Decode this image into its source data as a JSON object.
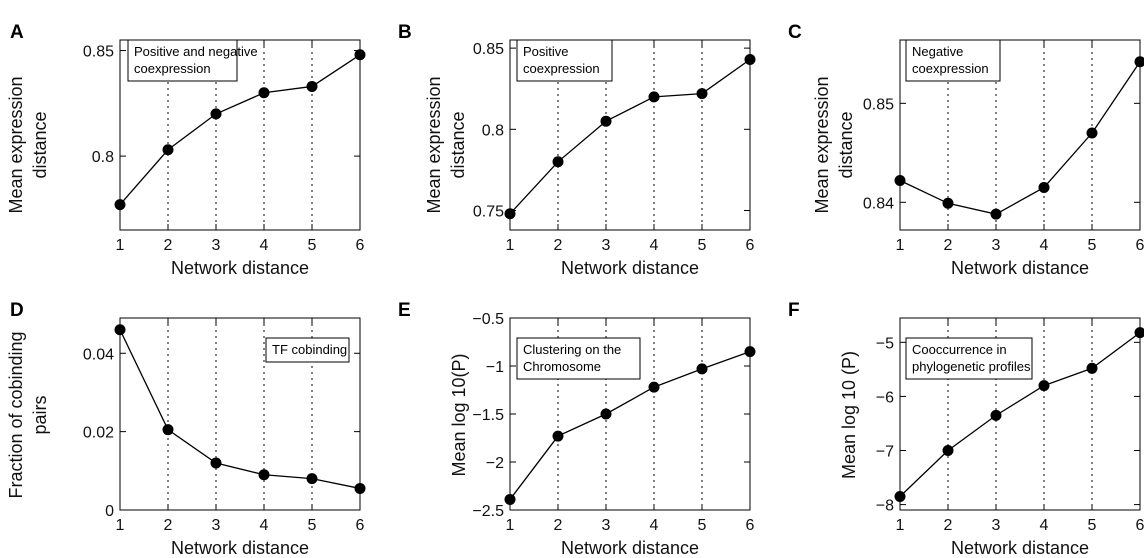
{
  "colors": {
    "ink": "#000000",
    "background": "#ffffff"
  },
  "chart_data": [
    {
      "id": "A",
      "type": "line",
      "panel_label": "A",
      "annotation": [
        "Positive and negative",
        "coexpression"
      ],
      "xlabel": "Network distance",
      "ylabel": [
        "Mean expression",
        "distance"
      ],
      "x": [
        1,
        2,
        3,
        4,
        5,
        6
      ],
      "y": [
        0.777,
        0.803,
        0.82,
        0.83,
        0.833,
        0.848
      ],
      "xlim": [
        1,
        6
      ],
      "ylim": [
        0.765,
        0.855
      ],
      "yticks": [
        0.8,
        0.85
      ],
      "ytick_labels": [
        "0.8",
        "0.85"
      ],
      "xticks": [
        1,
        2,
        3,
        4,
        5,
        6
      ],
      "xtick_labels": [
        "1",
        "2",
        "3",
        "4",
        "5",
        "6"
      ],
      "grid": "vertical dotted lines at x = 2..5"
    },
    {
      "id": "B",
      "type": "line",
      "panel_label": "B",
      "annotation": [
        "Positive",
        "coexpression"
      ],
      "xlabel": "Network distance",
      "ylabel": [
        "Mean expression",
        "distance"
      ],
      "x": [
        1,
        2,
        3,
        4,
        5,
        6
      ],
      "y": [
        0.748,
        0.78,
        0.805,
        0.82,
        0.822,
        0.843
      ],
      "xlim": [
        1,
        6
      ],
      "ylim": [
        0.738,
        0.855
      ],
      "yticks": [
        0.75,
        0.8,
        0.85
      ],
      "ytick_labels": [
        "0.75",
        "0.8",
        "0.85"
      ],
      "xticks": [
        1,
        2,
        3,
        4,
        5,
        6
      ],
      "xtick_labels": [
        "1",
        "2",
        "3",
        "4",
        "5",
        "6"
      ],
      "grid": "vertical dotted lines at x = 2..5"
    },
    {
      "id": "C",
      "type": "line",
      "panel_label": "C",
      "annotation": [
        "Negative",
        "coexpression"
      ],
      "xlabel": "Network distance",
      "ylabel": [
        "Mean expression",
        "distance"
      ],
      "x": [
        1,
        2,
        3,
        4,
        5,
        6
      ],
      "y": [
        0.8422,
        0.8399,
        0.8388,
        0.8415,
        0.847,
        0.8542
      ],
      "xlim": [
        1,
        6
      ],
      "ylim": [
        0.8372,
        0.8564
      ],
      "yticks": [
        0.84,
        0.85
      ],
      "ytick_labels": [
        "0.84",
        "0.85"
      ],
      "xticks": [
        1,
        2,
        3,
        4,
        5,
        6
      ],
      "xtick_labels": [
        "1",
        "2",
        "3",
        "4",
        "5",
        "6"
      ],
      "grid": "vertical dotted lines at x = 2..5"
    },
    {
      "id": "D",
      "type": "line",
      "panel_label": "D",
      "annotation": [
        "TF cobinding"
      ],
      "xlabel": "Network distance",
      "ylabel": [
        "Fraction of cobinding",
        "pairs"
      ],
      "x": [
        1,
        2,
        3,
        4,
        5,
        6
      ],
      "y": [
        0.046,
        0.0205,
        0.012,
        0.009,
        0.008,
        0.0055
      ],
      "xlim": [
        1,
        6
      ],
      "ylim": [
        0,
        0.049
      ],
      "yticks": [
        0,
        0.02,
        0.04
      ],
      "ytick_labels": [
        "0",
        "0.02",
        "0.04"
      ],
      "xticks": [
        1,
        2,
        3,
        4,
        5,
        6
      ],
      "xtick_labels": [
        "1",
        "2",
        "3",
        "4",
        "5",
        "6"
      ],
      "grid": "vertical dotted lines at x = 2..5"
    },
    {
      "id": "E",
      "type": "line",
      "panel_label": "E",
      "annotation": [
        "Clustering on the",
        "Chromosome"
      ],
      "xlabel": "Network distance",
      "ylabel": [
        "Mean log 10(P)"
      ],
      "x": [
        1,
        2,
        3,
        4,
        5,
        6
      ],
      "y": [
        -2.39,
        -1.73,
        -1.5,
        -1.22,
        -1.03,
        -0.85
      ],
      "xlim": [
        1,
        6
      ],
      "ylim": [
        -2.5,
        -0.5
      ],
      "yticks": [
        -2.5,
        -2,
        -1.5,
        -1,
        -0.5
      ],
      "ytick_labels": [
        "−2.5",
        "−2",
        "−1.5",
        "−1",
        "−0.5"
      ],
      "xticks": [
        1,
        2,
        3,
        4,
        5,
        6
      ],
      "xtick_labels": [
        "1",
        "2",
        "3",
        "4",
        "5",
        "6"
      ],
      "grid": "vertical dotted lines at x = 2..5"
    },
    {
      "id": "F",
      "type": "line",
      "panel_label": "F",
      "annotation": [
        "Cooccurrence in",
        "phylogenetic profiles"
      ],
      "xlabel": "Network distance",
      "ylabel": [
        "Mean log 10 (P)"
      ],
      "x": [
        1,
        2,
        3,
        4,
        5,
        6
      ],
      "y": [
        -7.85,
        -7.0,
        -6.35,
        -5.8,
        -5.48,
        -4.82
      ],
      "xlim": [
        1,
        6
      ],
      "ylim": [
        -8.1,
        -4.55
      ],
      "yticks": [
        -8,
        -7,
        -6,
        -5
      ],
      "ytick_labels": [
        "−8",
        "−7",
        "−6",
        "−5"
      ],
      "xticks": [
        1,
        2,
        3,
        4,
        5,
        6
      ],
      "xtick_labels": [
        "1",
        "2",
        "3",
        "4",
        "5",
        "6"
      ],
      "grid": "vertical dotted lines at x = 2..5"
    }
  ]
}
